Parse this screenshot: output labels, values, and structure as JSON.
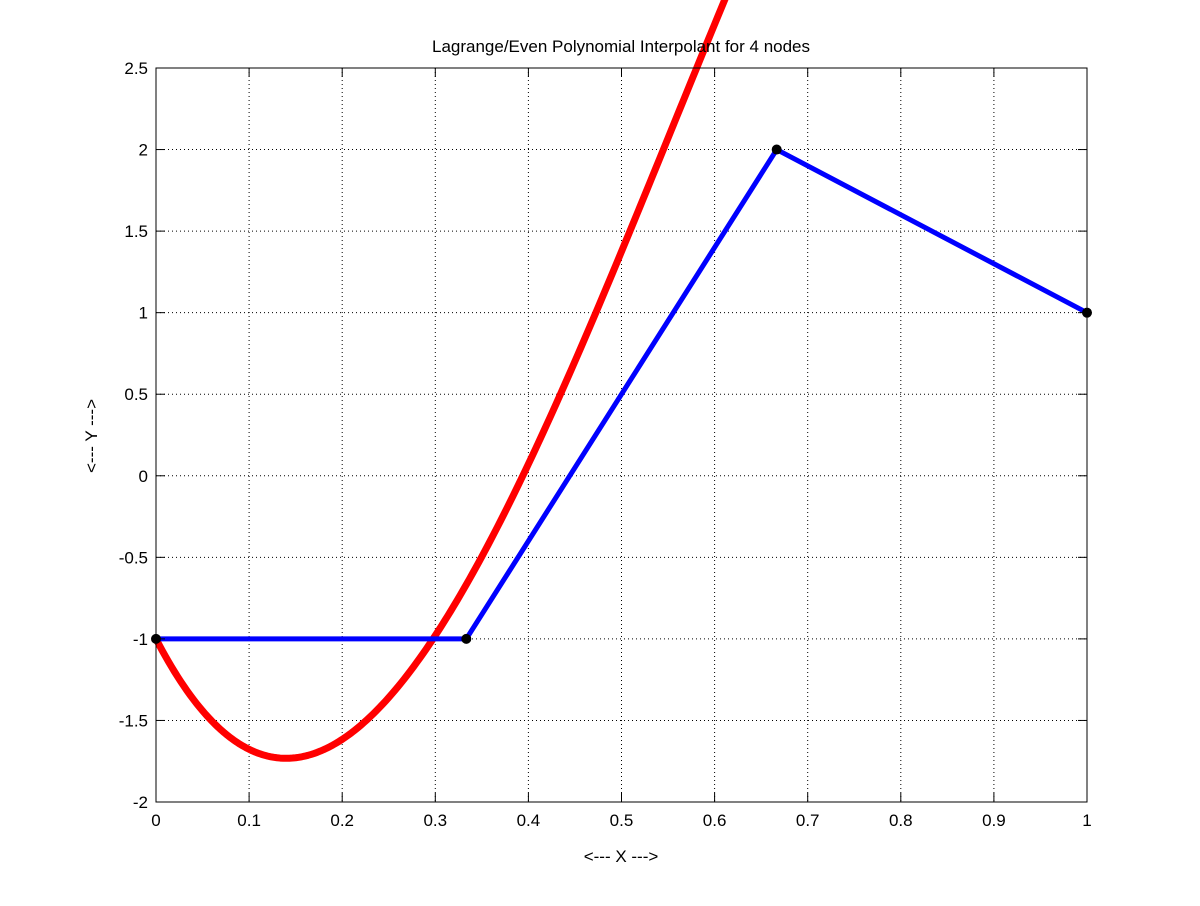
{
  "chart_data": {
    "type": "line",
    "title": "Lagrange/Even Polynomial Interpolant for 4 nodes",
    "xlabel": "<--- X --->",
    "ylabel": "<--- Y --->",
    "xlim": [
      0,
      1
    ],
    "ylim": [
      -2,
      2.5
    ],
    "xticks": [
      0,
      0.1,
      0.2,
      0.3,
      0.4,
      0.5,
      0.6,
      0.7,
      0.8,
      0.9,
      1
    ],
    "xtick_labels": [
      "0",
      "0.1",
      "0.2",
      "0.3",
      "0.4",
      "0.5",
      "0.6",
      "0.7",
      "0.8",
      "0.9",
      "1"
    ],
    "yticks": [
      -2,
      -1.5,
      -1,
      -0.5,
      0,
      0.5,
      1,
      1.5,
      2,
      2.5
    ],
    "ytick_labels": [
      "-2",
      "-1.5",
      "-1",
      "-0.5",
      "0",
      "0.5",
      "1",
      "1.5",
      "2",
      "2.5"
    ],
    "grid": true,
    "series": [
      {
        "kind": "interpolant",
        "color": "#ff0000",
        "coefficients": [
          -1,
          -11,
          45,
          -27
        ],
        "x_range": [
          0,
          1
        ]
      },
      {
        "kind": "piecewise-linear",
        "color": "#0000ff",
        "x": [
          0,
          0.3333,
          0.6667,
          1
        ],
        "y": [
          -1,
          -1,
          2,
          1
        ]
      },
      {
        "kind": "nodes",
        "color": "#000000",
        "x": [
          0,
          0.3333,
          0.6667,
          1
        ],
        "y": [
          -1,
          -1,
          2,
          1
        ]
      }
    ]
  }
}
